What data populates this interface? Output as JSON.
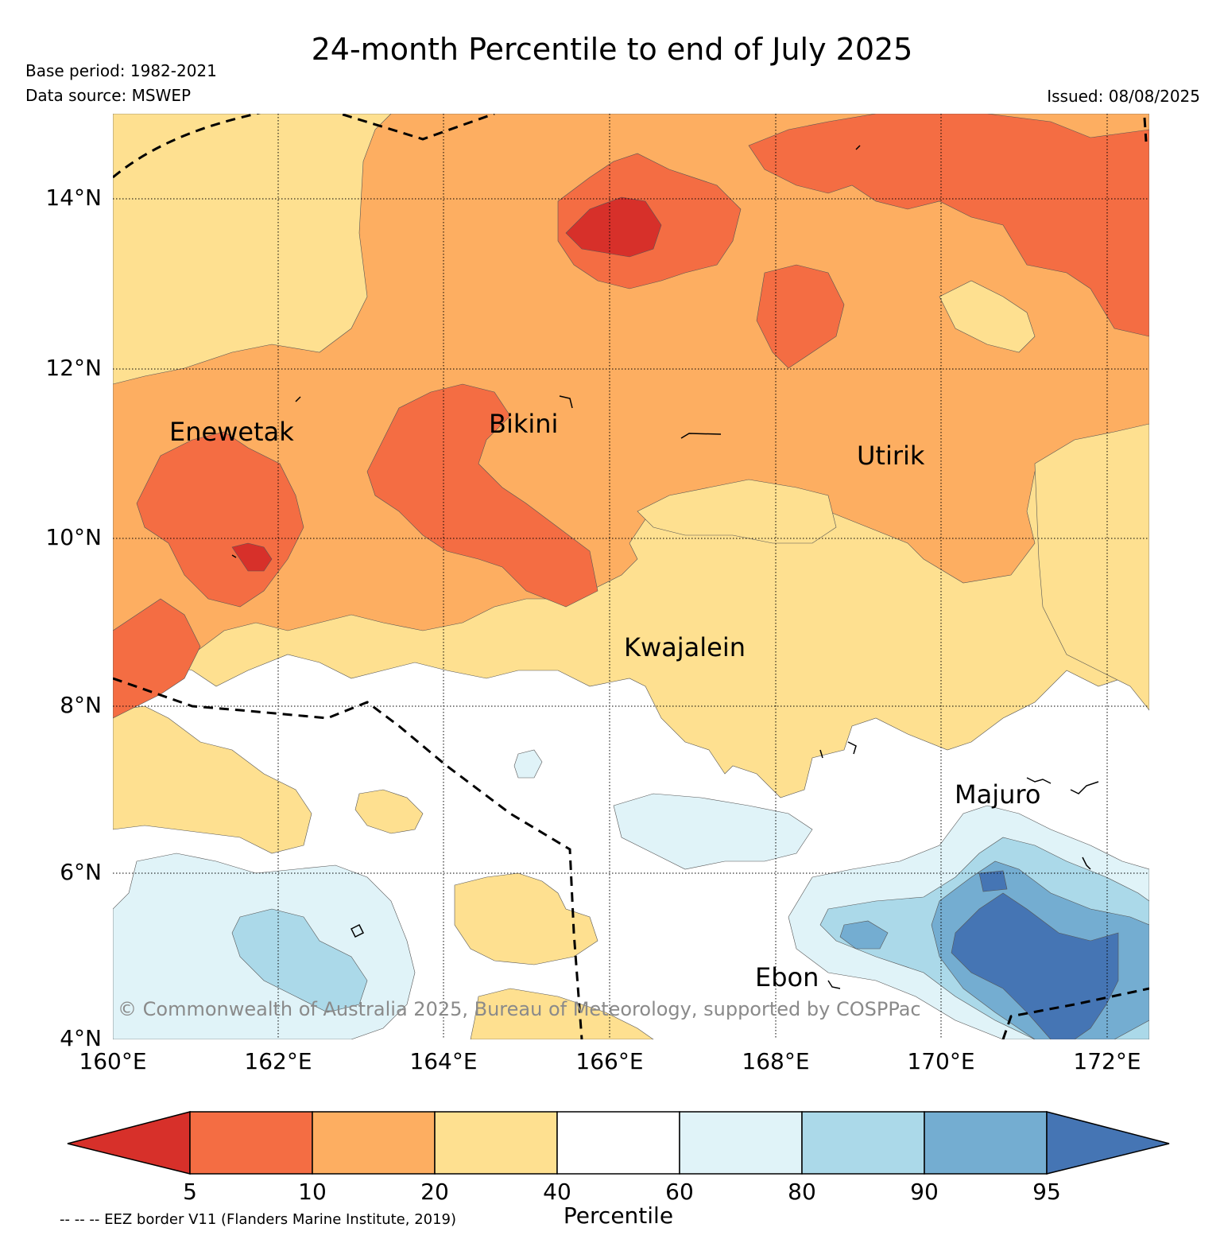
{
  "header": {
    "title": "24-month Percentile to end of July 2025",
    "base_period": "Base period: 1982-2021",
    "data_source": "Data source: MSWEP",
    "issued": "Issued: 08/08/2025"
  },
  "map": {
    "lat_labels": [
      "14°N",
      "12°N",
      "10°N",
      "8°N",
      "6°N",
      "4°N"
    ],
    "lon_labels": [
      "160°E",
      "162°E",
      "164°E",
      "166°E",
      "168°E",
      "170°E",
      "172°E"
    ],
    "places": {
      "enewetak": "Enewetak",
      "bikini": "Bikini",
      "utirik": "Utirik",
      "kwajalein": "Kwajalein",
      "majuro": "Majuro",
      "ebon": "Ebon"
    },
    "copyright": "© Commonwealth of Australia 2025, Bureau of Meteorology, supported by COSPPac",
    "category_colors": {
      "below_5": "#d7302a",
      "p5_10": "#f46d43",
      "p10_20": "#fdae61",
      "p20_40": "#fee090",
      "p40_60": "#ffffff",
      "p60_80": "#e0f3f8",
      "p80_90": "#abd9e9",
      "p90_95": "#74add1",
      "above_95": "#4575b4"
    }
  },
  "colorbar": {
    "ticks": [
      "5",
      "10",
      "20",
      "40",
      "60",
      "80",
      "90",
      "95"
    ],
    "label": "Percentile"
  },
  "footer": {
    "eez_note": "-- -- -- EEZ border V11 (Flanders Marine Institute, 2019)"
  }
}
